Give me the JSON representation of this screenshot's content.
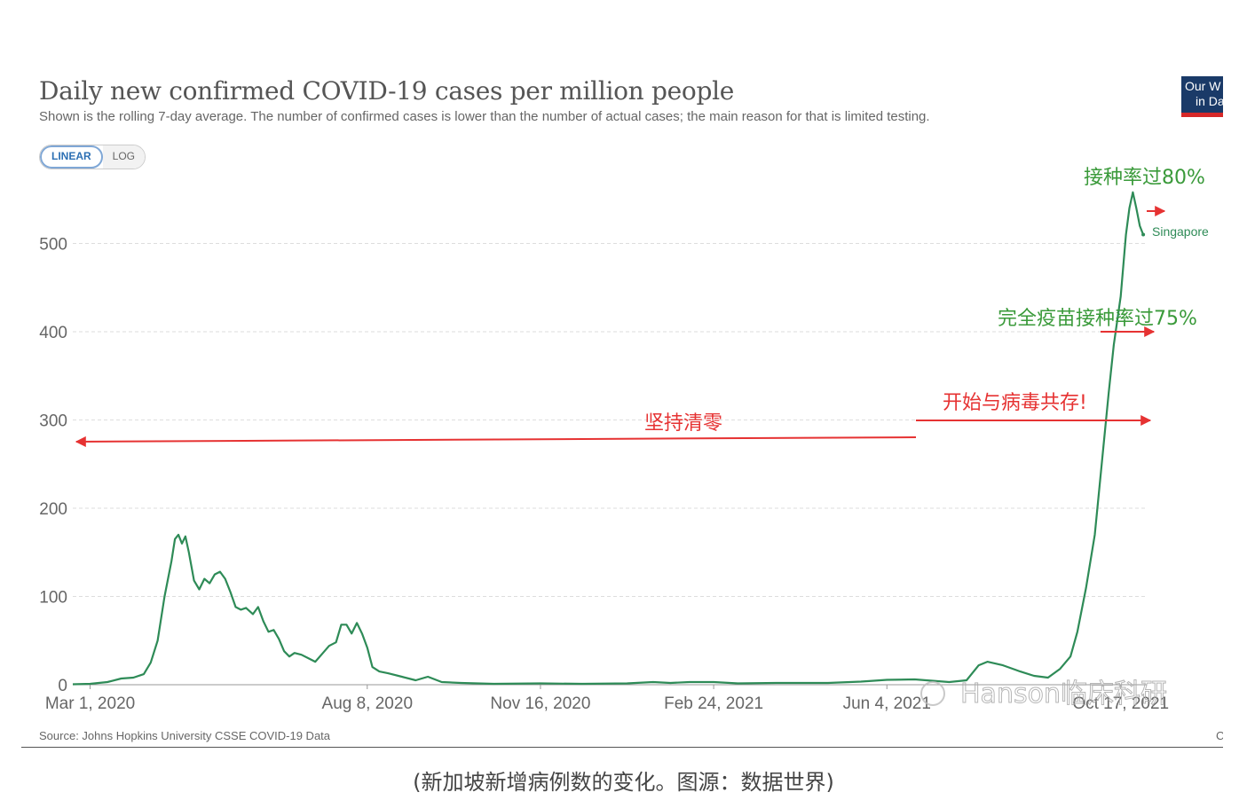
{
  "header": {
    "title": "Daily new confirmed COVID-19 cases per million people",
    "subtitle": "Shown is the rolling 7-day average. The number of confirmed cases is lower than the number of actual cases; the main reason for that is limited testing.",
    "logo_line1": "Our W",
    "logo_line2": "in Da"
  },
  "toggle": {
    "linear": "LINEAR",
    "log": "LOG"
  },
  "source": "Source: Johns Hopkins University CSSE COVID-19 Data",
  "corner_letter": "C",
  "caption": "(新加坡新增病例数的变化。图源：数据世界)",
  "watermark": "Hanson临床科研",
  "annotations": {
    "vacc80": "接种率过80%",
    "full75": "完全疫苗接种率过75%",
    "coexist": "开始与病毒共存!",
    "zero": "坚持清零"
  },
  "colors": {
    "line": "#2e8b57",
    "arrow": "#e63232",
    "green_text": "#3a9a3a",
    "grid": "#dddddd"
  },
  "chart_data": {
    "type": "line",
    "title": "Daily new confirmed COVID-19 cases per million people",
    "ylim": [
      0,
      560
    ],
    "yticks": [
      0,
      100,
      200,
      300,
      400,
      500
    ],
    "xlim": [
      "2020-02-20",
      "2021-11-01"
    ],
    "xtick_labels": [
      "Mar 1, 2020",
      "Aug 8, 2020",
      "Nov 16, 2020",
      "Feb 24, 2021",
      "Jun 4, 2021",
      "Oct 17, 2021"
    ],
    "xtick_dates": [
      "2020-03-01",
      "2020-08-08",
      "2020-11-16",
      "2021-02-24",
      "2021-06-04",
      "2021-10-17"
    ],
    "series": [
      {
        "name": "Singapore",
        "points": [
          [
            "2020-02-20",
            0.5
          ],
          [
            "2020-03-01",
            1
          ],
          [
            "2020-03-11",
            3
          ],
          [
            "2020-03-19",
            7
          ],
          [
            "2020-03-26",
            8
          ],
          [
            "2020-04-01",
            12
          ],
          [
            "2020-04-05",
            25
          ],
          [
            "2020-04-09",
            50
          ],
          [
            "2020-04-13",
            100
          ],
          [
            "2020-04-17",
            140
          ],
          [
            "2020-04-19",
            165
          ],
          [
            "2020-04-21",
            170
          ],
          [
            "2020-04-23",
            160
          ],
          [
            "2020-04-25",
            168
          ],
          [
            "2020-04-27",
            150
          ],
          [
            "2020-04-30",
            118
          ],
          [
            "2020-05-03",
            108
          ],
          [
            "2020-05-06",
            120
          ],
          [
            "2020-05-09",
            115
          ],
          [
            "2020-05-12",
            125
          ],
          [
            "2020-05-15",
            128
          ],
          [
            "2020-05-18",
            120
          ],
          [
            "2020-05-21",
            105
          ],
          [
            "2020-05-24",
            88
          ],
          [
            "2020-05-27",
            85
          ],
          [
            "2020-05-30",
            87
          ],
          [
            "2020-06-03",
            80
          ],
          [
            "2020-06-06",
            88
          ],
          [
            "2020-06-09",
            72
          ],
          [
            "2020-06-12",
            60
          ],
          [
            "2020-06-15",
            62
          ],
          [
            "2020-06-18",
            52
          ],
          [
            "2020-06-21",
            38
          ],
          [
            "2020-06-24",
            32
          ],
          [
            "2020-06-27",
            36
          ],
          [
            "2020-07-01",
            34
          ],
          [
            "2020-07-05",
            30
          ],
          [
            "2020-07-09",
            26
          ],
          [
            "2020-07-13",
            35
          ],
          [
            "2020-07-17",
            44
          ],
          [
            "2020-07-21",
            48
          ],
          [
            "2020-07-24",
            68
          ],
          [
            "2020-07-27",
            68
          ],
          [
            "2020-07-30",
            58
          ],
          [
            "2020-08-02",
            70
          ],
          [
            "2020-08-05",
            58
          ],
          [
            "2020-08-08",
            42
          ],
          [
            "2020-08-11",
            20
          ],
          [
            "2020-08-15",
            15
          ],
          [
            "2020-08-20",
            13
          ],
          [
            "2020-08-28",
            9
          ],
          [
            "2020-09-05",
            5
          ],
          [
            "2020-09-12",
            9
          ],
          [
            "2020-09-20",
            3
          ],
          [
            "2020-10-01",
            2
          ],
          [
            "2020-10-20",
            1
          ],
          [
            "2020-11-16",
            1.5
          ],
          [
            "2020-12-10",
            1
          ],
          [
            "2021-01-05",
            1.5
          ],
          [
            "2021-01-20",
            3
          ],
          [
            "2021-01-30",
            2
          ],
          [
            "2021-02-10",
            3
          ],
          [
            "2021-02-24",
            3
          ],
          [
            "2021-03-10",
            1.5
          ],
          [
            "2021-04-01",
            2
          ],
          [
            "2021-05-01",
            2
          ],
          [
            "2021-05-20",
            3.5
          ],
          [
            "2021-06-04",
            5.5
          ],
          [
            "2021-06-20",
            6
          ],
          [
            "2021-07-10",
            3
          ],
          [
            "2021-07-20",
            5
          ],
          [
            "2021-07-27",
            22
          ],
          [
            "2021-08-01",
            26
          ],
          [
            "2021-08-10",
            22
          ],
          [
            "2021-08-20",
            15
          ],
          [
            "2021-08-28",
            10
          ],
          [
            "2021-09-05",
            8
          ],
          [
            "2021-09-12",
            18
          ],
          [
            "2021-09-18",
            32
          ],
          [
            "2021-09-22",
            60
          ],
          [
            "2021-09-27",
            110
          ],
          [
            "2021-10-02",
            170
          ],
          [
            "2021-10-06",
            250
          ],
          [
            "2021-10-10",
            330
          ],
          [
            "2021-10-13",
            385
          ],
          [
            "2021-10-17",
            440
          ],
          [
            "2021-10-20",
            510
          ],
          [
            "2021-10-22",
            540
          ],
          [
            "2021-10-24",
            558
          ],
          [
            "2021-10-26",
            540
          ],
          [
            "2021-10-28",
            520
          ],
          [
            "2021-10-30",
            510
          ]
        ]
      }
    ]
  }
}
